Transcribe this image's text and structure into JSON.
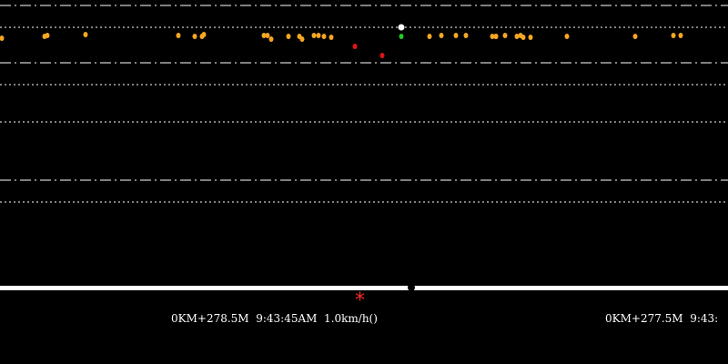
{
  "display": {
    "background_color": "#000000",
    "lane_line_color": "#ffffff",
    "track_color": "#ffffff"
  },
  "detections": {
    "colors": {
      "vehicle": "#f5a623",
      "alert": "#e01515",
      "selected_top": "#ffffff",
      "selected_bottom": "#22c922"
    },
    "items": [
      {
        "type": "vehicle"
      },
      {
        "type": "vehicle"
      },
      {
        "type": "vehicle"
      },
      {
        "type": "vehicle"
      },
      {
        "type": "vehicle"
      },
      {
        "type": "vehicle"
      },
      {
        "type": "vehicle"
      },
      {
        "type": "vehicle"
      },
      {
        "type": "vehicle"
      },
      {
        "type": "vehicle"
      },
      {
        "type": "vehicle"
      },
      {
        "type": "vehicle"
      },
      {
        "type": "vehicle"
      },
      {
        "type": "vehicle"
      },
      {
        "type": "vehicle"
      },
      {
        "type": "vehicle"
      },
      {
        "type": "vehicle"
      },
      {
        "type": "vehicle"
      },
      {
        "type": "vehicle"
      },
      {
        "type": "vehicle"
      },
      {
        "type": "vehicle"
      },
      {
        "type": "vehicle"
      },
      {
        "type": "vehicle"
      },
      {
        "type": "vehicle"
      },
      {
        "type": "vehicle"
      },
      {
        "type": "vehicle"
      },
      {
        "type": "vehicle"
      },
      {
        "type": "vehicle"
      },
      {
        "type": "alert"
      },
      {
        "type": "alert"
      },
      {
        "type": "selected_top"
      },
      {
        "type": "selected_bottom"
      }
    ]
  },
  "status_labels": [
    {
      "text": "0KM+278.5M  9:43:45AM  1.0km/h()"
    },
    {
      "text": "0KM+277.5M  9:43:"
    }
  ],
  "marker": {
    "symbol": "*",
    "color": "#ff2a2a"
  }
}
